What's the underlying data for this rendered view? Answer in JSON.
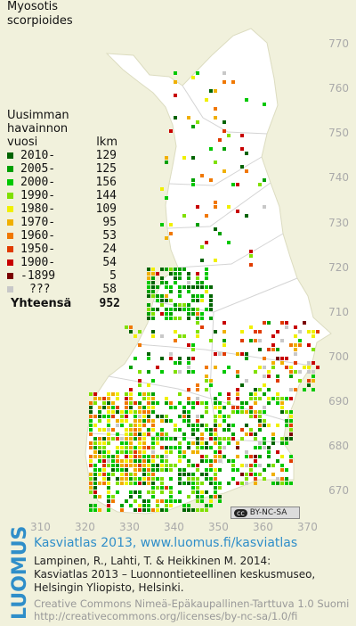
{
  "title": [
    "Myosotis",
    "scorpioides"
  ],
  "legend": {
    "header_lines": [
      "Uusimman",
      "havainnon"
    ],
    "header_col1": "vuosi",
    "header_col2": "lkm",
    "rows": [
      {
        "year": "2010-",
        "count": "129",
        "color": "#006400"
      },
      {
        "year": "2005-",
        "count": "125",
        "color": "#00a000"
      },
      {
        "year": "2000-",
        "count": "156",
        "color": "#00c800"
      },
      {
        "year": "1990-",
        "count": "144",
        "color": "#80e000"
      },
      {
        "year": "1980-",
        "count": "109",
        "color": "#f0f000"
      },
      {
        "year": "1970-",
        "count": "95",
        "color": "#f0b000"
      },
      {
        "year": "1960-",
        "count": "53",
        "color": "#f07800"
      },
      {
        "year": "1950-",
        "count": "24",
        "color": "#e03c00"
      },
      {
        "year": "1900-",
        "count": "54",
        "color": "#c80000"
      },
      {
        "year": "-1899",
        "count": "5",
        "color": "#7a0000"
      },
      {
        "year": "???",
        "count": "58",
        "color": "#c8c8c8"
      }
    ],
    "total_label": "Yhteensä",
    "total_count": "952"
  },
  "axes": {
    "y_ticks": [
      "770",
      "760",
      "750",
      "740",
      "730",
      "720",
      "710",
      "700",
      "690",
      "680",
      "670"
    ],
    "x_ticks": [
      "310",
      "320",
      "330",
      "340",
      "350",
      "360",
      "370"
    ]
  },
  "cc_badge": {
    "symbol": "cc",
    "text": "BY-NC-SA"
  },
  "logo": "LUOMUS",
  "footer": {
    "link": "Kasviatlas 2013, www.luomus.fi/kasviatlas",
    "citation": [
      "Lampinen, R., Lahti, T. & Heikkinen M. 2014:",
      "Kasviatlas 2013 – Luonnontieteellinen keskusmuseo,",
      "Helsingin Yliopisto, Helsinki."
    ],
    "license": [
      "Creative Commons Nimeä-Epäkaupallinen-Tarttuva 1.0 Suomi",
      "http://creativecommons.org/licenses/by-nc-sa/1.0/fi"
    ]
  },
  "map": {
    "land_color": "#ffffff",
    "background_color": "#f1f1dc",
    "border_color": "#cfcfcf"
  }
}
